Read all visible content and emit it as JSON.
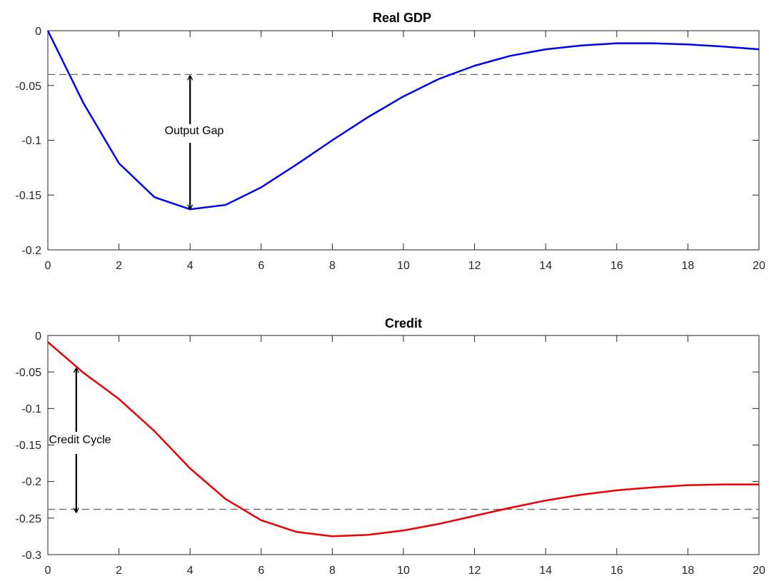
{
  "chart_data": [
    {
      "type": "line",
      "title": "Real GDP",
      "xlabel": "",
      "ylabel": "",
      "xlim": [
        0,
        20
      ],
      "ylim": [
        -0.2,
        0
      ],
      "xticks": [
        0,
        2,
        4,
        6,
        8,
        10,
        12,
        14,
        16,
        18,
        20
      ],
      "yticks": [
        0,
        -0.05,
        -0.1,
        -0.15,
        -0.2
      ],
      "xtick_labels": [
        "0",
        "2",
        "4",
        "6",
        "8",
        "10",
        "12",
        "14",
        "16",
        "18",
        "20"
      ],
      "ytick_labels": [
        "0",
        "-0.05",
        "-0.1",
        "-0.15",
        "-0.2"
      ],
      "grid": false,
      "series": [
        {
          "color": "#0000ee",
          "x": [
            0,
            1,
            2,
            3,
            4,
            5,
            6,
            7,
            8,
            9,
            10,
            11,
            12,
            13,
            14,
            15,
            16,
            17,
            18,
            19,
            20
          ],
          "values": [
            0,
            -0.066,
            -0.121,
            -0.152,
            -0.163,
            -0.159,
            -0.143,
            -0.122,
            -0.1,
            -0.079,
            -0.06,
            -0.044,
            -0.032,
            -0.023,
            -0.017,
            -0.0135,
            -0.0115,
            -0.0115,
            -0.0125,
            -0.0145,
            -0.017
          ]
        }
      ],
      "reference_line": {
        "y": -0.04,
        "style": "dashed",
        "color": "#666666"
      },
      "annotation": {
        "text": "Output Gap",
        "x": 4,
        "y_from": -0.04,
        "y_to": -0.163
      }
    },
    {
      "type": "line",
      "title": "Credit",
      "xlabel": "",
      "ylabel": "",
      "xlim": [
        0,
        20
      ],
      "ylim": [
        -0.3,
        0
      ],
      "xticks": [
        0,
        2,
        4,
        6,
        8,
        10,
        12,
        14,
        16,
        18,
        20
      ],
      "yticks": [
        0,
        -0.05,
        -0.1,
        -0.15,
        -0.2,
        -0.25,
        -0.3
      ],
      "xtick_labels": [
        "0",
        "2",
        "4",
        "6",
        "8",
        "10",
        "12",
        "14",
        "16",
        "18",
        "20"
      ],
      "ytick_labels": [
        "0",
        "-0.05",
        "-0.1",
        "-0.15",
        "-0.2",
        "-0.25",
        "-0.3"
      ],
      "grid": false,
      "series": [
        {
          "color": "#ee0000",
          "x": [
            0,
            1,
            2,
            3,
            4,
            5,
            6,
            7,
            8,
            9,
            10,
            11,
            12,
            13,
            14,
            15,
            16,
            17,
            18,
            19,
            20
          ],
          "values": [
            -0.009,
            -0.051,
            -0.087,
            -0.131,
            -0.182,
            -0.224,
            -0.253,
            -0.269,
            -0.275,
            -0.273,
            -0.267,
            -0.258,
            -0.247,
            -0.236,
            -0.226,
            -0.218,
            -0.212,
            -0.208,
            -0.205,
            -0.204,
            -0.204
          ]
        }
      ],
      "reference_line": {
        "y": -0.238,
        "style": "dashed",
        "color": "#666666"
      },
      "annotation": {
        "text": "Credit Cycle",
        "x": 0.8,
        "y_from": -0.042,
        "y_to": -0.238
      }
    }
  ]
}
